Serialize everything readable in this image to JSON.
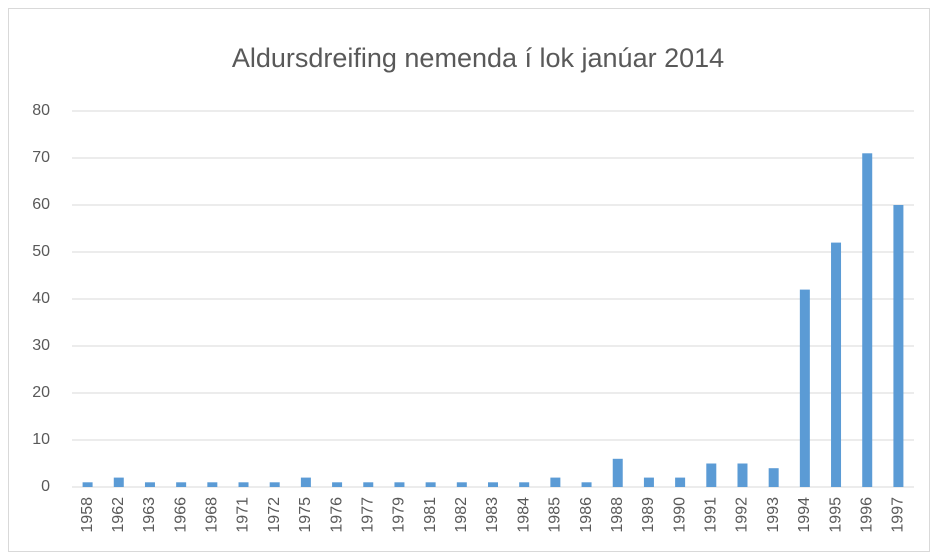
{
  "chart_data": {
    "type": "bar",
    "title": "Aldursdreifing nemenda í lok janúar 2014",
    "categories": [
      "1958",
      "1962",
      "1963",
      "1966",
      "1968",
      "1971",
      "1972",
      "1975",
      "1976",
      "1977",
      "1979",
      "1981",
      "1982",
      "1983",
      "1984",
      "1985",
      "1986",
      "1988",
      "1989",
      "1990",
      "1991",
      "1992",
      "1993",
      "1994",
      "1995",
      "1996",
      "1997"
    ],
    "values": [
      1,
      2,
      1,
      1,
      1,
      1,
      1,
      2,
      1,
      1,
      1,
      1,
      1,
      1,
      1,
      2,
      1,
      6,
      2,
      2,
      5,
      5,
      4,
      42,
      52,
      71,
      60
    ],
    "color": "#5b9bd5",
    "ylim": [
      0,
      80
    ],
    "yticks": [
      0,
      10,
      20,
      30,
      40,
      50,
      60,
      70,
      80
    ],
    "grid": true
  }
}
